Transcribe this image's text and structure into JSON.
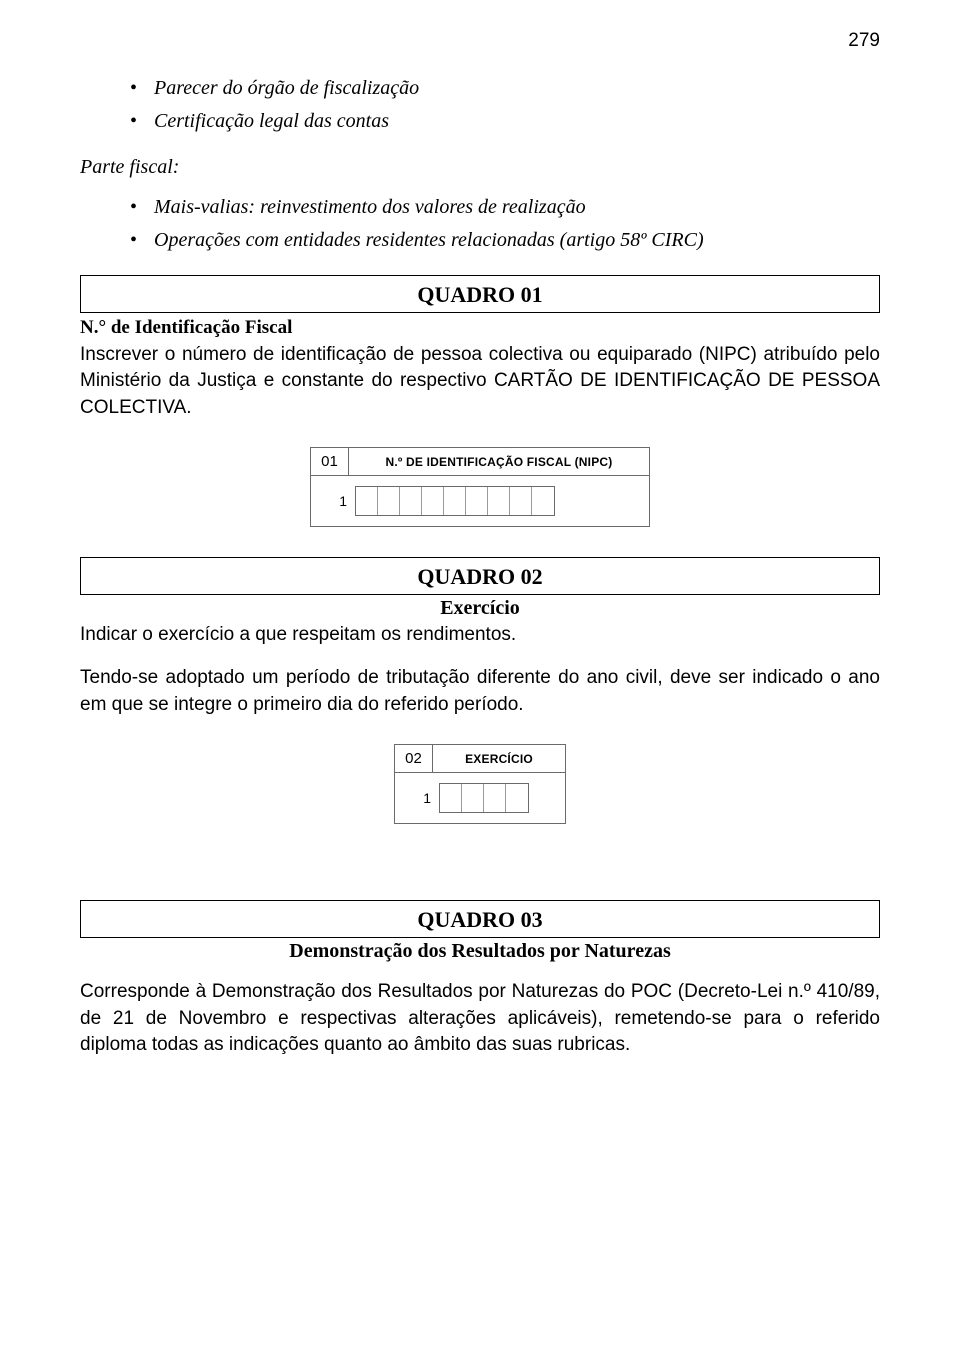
{
  "page_number": "279",
  "top_bullets": [
    "Parecer do órgão de fiscalização",
    "Certificação legal das contas"
  ],
  "parte_fiscal_label": "Parte fiscal:",
  "fiscal_bullets": [
    "Mais-valias: reinvestimento dos valores de realização",
    "Operações com entidades residentes relacionadas (artigo 58º CIRC)"
  ],
  "quadro01": {
    "heading": "QUADRO 01",
    "subtitle": "N.° de Identificação Fiscal",
    "text": "Inscrever o número de identificação de pessoa colectiva ou equiparado (NIPC) atribuído pelo Ministério da Justiça e constante do respectivo CARTÃO DE IDENTIFICAÇÃO DE PESSOA COLECTIVA.",
    "form": {
      "num": "01",
      "title": "N.º DE IDENTIFICAÇÃO FISCAL  (NIPC)",
      "row_num": "1",
      "cell_count": 9
    }
  },
  "quadro02": {
    "heading": "QUADRO 02",
    "subtitle": "Exercício",
    "text1": "Indicar o exercício a que respeitam os rendimentos.",
    "text2": "Tendo-se adoptado um período de tributação diferente do ano civil, deve ser indicado o ano em que se integre o primeiro dia do referido período.",
    "form": {
      "num": "02",
      "title": "EXERCÍCIO",
      "row_num": "1",
      "cell_count": 4
    }
  },
  "quadro03": {
    "heading": "QUADRO 03",
    "subtitle": "Demonstração dos Resultados por Naturezas",
    "text": "Corresponde à Demonstração dos Resultados por Naturezas do POC (Decreto-Lei n.º 410/89, de 21 de Novembro e respectivas alterações aplicáveis), remetendo-se para o referido diploma todas as indicações quanto ao âmbito das suas rubricas."
  }
}
